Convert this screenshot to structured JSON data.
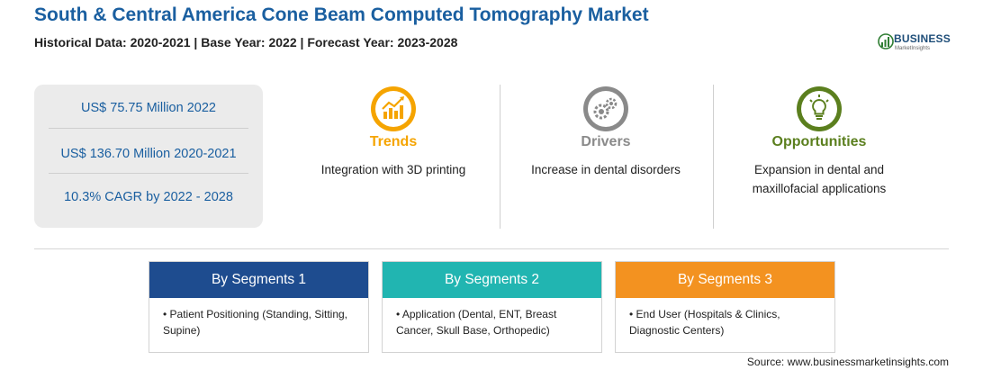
{
  "header": {
    "title": "South & Central America Cone Beam Computed Tomography Market",
    "subtitle": "Historical Data: 2020-2021 | Base Year: 2022 | Forecast Year: 2023-2028"
  },
  "logo": {
    "name": "BUSINESS",
    "tagline": "MarketInsights"
  },
  "stats": [
    "US$ 75.75 Million 2022",
    "US$ 136.70 Million 2020-2021",
    "10.3% CAGR by 2022 - 2028"
  ],
  "columns": [
    {
      "heading": "Trends",
      "text": "Integration with 3D printing",
      "icon": "trend-chart-icon",
      "color": "#f5a400"
    },
    {
      "heading": "Drivers",
      "text": "Increase in dental disorders",
      "icon": "gears-icon",
      "color": "#8a8a8a"
    },
    {
      "heading": "Opportunities",
      "text": "Expansion in dental and maxillofacial applications",
      "icon": "lightbulb-icon",
      "color": "#5b7f1e"
    }
  ],
  "segments": [
    {
      "title": "By Segments 1",
      "item": "Patient Positioning (Standing, Sitting, Supine)",
      "color": "#1e4c8f"
    },
    {
      "title": "By Segments 2",
      "item": "Application (Dental, ENT, Breast Cancer, Skull Base, Orthopedic)",
      "color": "#21b5b1"
    },
    {
      "title": "By Segments 3",
      "item": "End User (Hospitals & Clinics, Diagnostic Centers)",
      "color": "#f39220"
    }
  ],
  "footer": {
    "source": "Source: www.businessmarketinsights.com"
  }
}
